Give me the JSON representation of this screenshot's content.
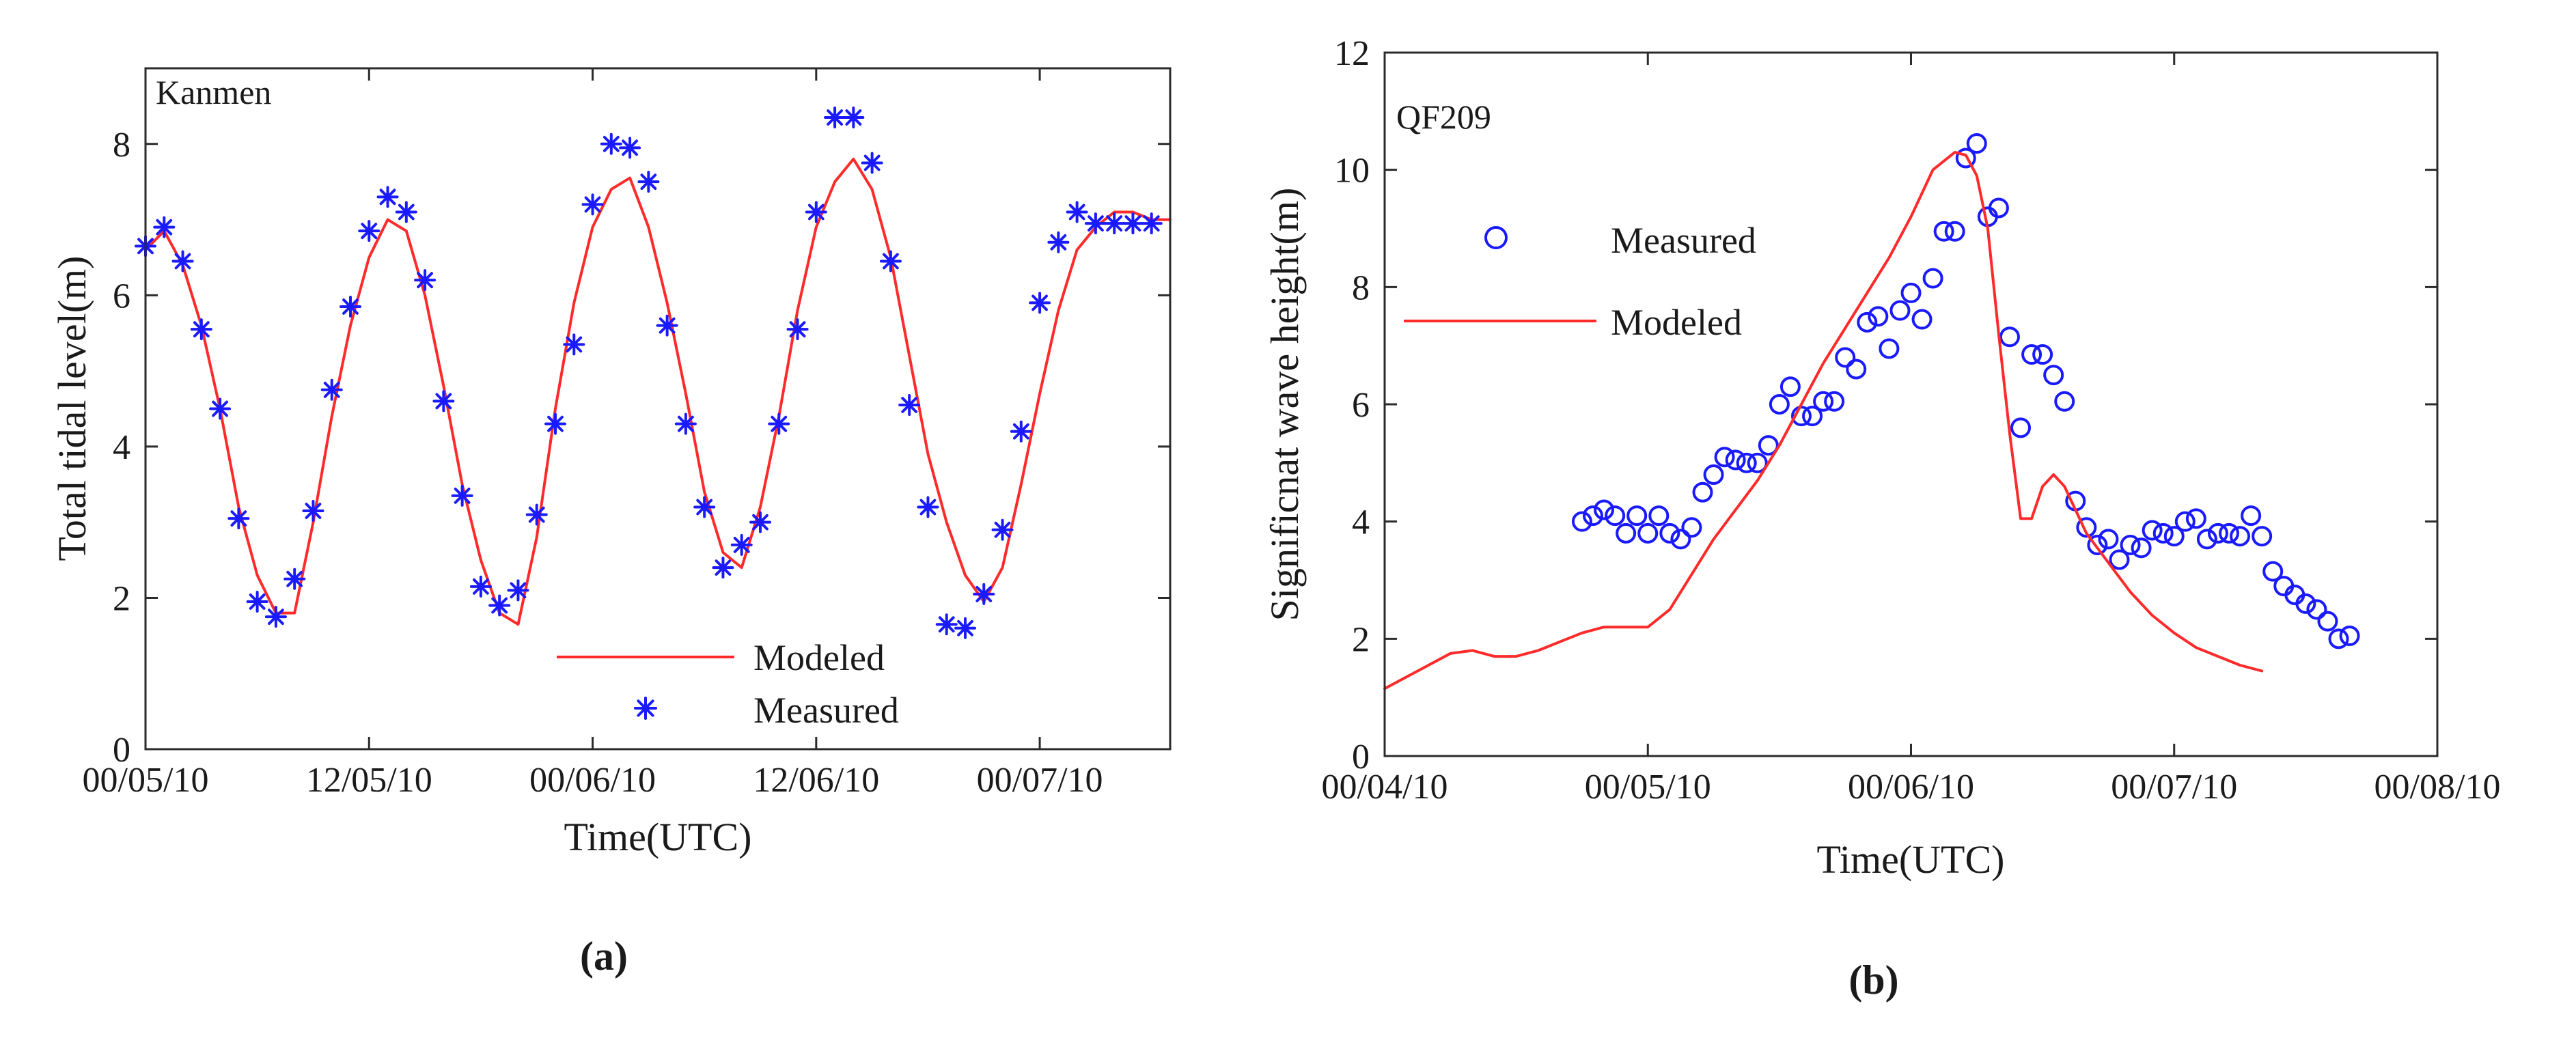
{
  "colors": {
    "modeled": "#ff2a2a",
    "measured": "#1a1aff",
    "axis": "#2b2b2b"
  },
  "chart_data": [
    {
      "type": "line",
      "panel_label": "(a)",
      "title": "Kanmen",
      "xlabel": "Time(UTC)",
      "ylabel": "Total tidal level(m)",
      "x_unit": "hours since 00/05/10",
      "xlim": [
        0,
        55
      ],
      "ylim": [
        0,
        9
      ],
      "xticks": [
        {
          "value": 0,
          "label": "00/05/10"
        },
        {
          "value": 12,
          "label": "12/05/10"
        },
        {
          "value": 24,
          "label": "00/06/10"
        },
        {
          "value": 36,
          "label": "12/06/10"
        },
        {
          "value": 48,
          "label": "00/07/10"
        }
      ],
      "yticks": [
        0,
        2,
        4,
        6,
        8
      ],
      "legend": {
        "position": "bottom-center",
        "entries": [
          "Modeled",
          "Measured"
        ]
      },
      "series": [
        {
          "name": "Modeled",
          "style": "line",
          "color": "#ff2a2a",
          "x": [
            0,
            1,
            2,
            3,
            4,
            5,
            6,
            7,
            8,
            9,
            10,
            11,
            12,
            13,
            14,
            15,
            16,
            17,
            18,
            19,
            20,
            21,
            22,
            23,
            24,
            25,
            26,
            27,
            28,
            29,
            30,
            31,
            32,
            33,
            34,
            35,
            36,
            37,
            38,
            39,
            40,
            41,
            42,
            43,
            44,
            45,
            46,
            47,
            48,
            49,
            50,
            51,
            52,
            53,
            54,
            55
          ],
          "y": [
            6.6,
            6.85,
            6.4,
            5.6,
            4.5,
            3.2,
            2.3,
            1.8,
            1.8,
            3.0,
            4.4,
            5.6,
            6.5,
            7.0,
            6.85,
            6.0,
            4.8,
            3.5,
            2.5,
            1.8,
            1.65,
            2.8,
            4.5,
            5.9,
            6.9,
            7.4,
            7.55,
            6.9,
            5.9,
            4.7,
            3.4,
            2.6,
            2.4,
            3.2,
            4.4,
            5.8,
            6.9,
            7.5,
            7.8,
            7.4,
            6.5,
            5.2,
            3.9,
            3.0,
            2.3,
            1.95,
            2.4,
            3.5,
            4.7,
            5.8,
            6.6,
            6.9,
            7.1,
            7.1,
            7.0,
            7.0
          ]
        },
        {
          "name": "Measured",
          "style": "marker-asterisk",
          "color": "#1a1aff",
          "x": [
            0,
            1,
            2,
            3,
            4,
            5,
            6,
            7,
            8,
            9,
            10,
            11,
            12,
            13,
            14,
            15,
            16,
            17,
            18,
            19,
            20,
            21,
            22,
            23,
            24,
            25,
            26,
            27,
            28,
            29,
            30,
            31,
            32,
            33,
            34,
            35,
            36,
            37,
            38,
            39,
            40,
            41,
            42,
            43,
            44,
            45,
            46,
            47,
            48,
            49,
            50,
            51,
            52,
            53,
            54
          ],
          "y": [
            6.65,
            6.9,
            6.45,
            5.55,
            4.5,
            3.05,
            1.95,
            1.75,
            2.25,
            3.15,
            4.75,
            5.85,
            6.85,
            7.3,
            7.1,
            6.2,
            4.6,
            3.35,
            2.15,
            1.9,
            2.1,
            3.1,
            4.3,
            5.35,
            7.2,
            8.0,
            7.95,
            7.5,
            5.6,
            4.3,
            3.2,
            2.4,
            2.7,
            3.0,
            4.3,
            5.55,
            7.1,
            8.35,
            8.35,
            7.75,
            6.45,
            4.55,
            3.2,
            1.65,
            1.6,
            2.05,
            2.9,
            4.2,
            5.9,
            6.7,
            7.1,
            6.95,
            6.95,
            6.95,
            6.95
          ]
        }
      ]
    },
    {
      "type": "scatter",
      "panel_label": "(b)",
      "title": "QF209",
      "xlabel": "Time(UTC)",
      "ylabel": "Significnat wave height(m)",
      "x_unit": "hours since 00/04/10",
      "xlim": [
        0,
        96
      ],
      "ylim": [
        0,
        12
      ],
      "xticks": [
        {
          "value": 0,
          "label": "00/04/10"
        },
        {
          "value": 24,
          "label": "00/05/10"
        },
        {
          "value": 48,
          "label": "00/06/10"
        },
        {
          "value": 72,
          "label": "00/07/10"
        },
        {
          "value": 96,
          "label": "00/08/10"
        }
      ],
      "yticks": [
        0,
        2,
        4,
        6,
        8,
        10,
        12
      ],
      "legend": {
        "position": "top-left",
        "entries": [
          "Measured",
          "Modeled"
        ]
      },
      "series": [
        {
          "name": "Measured",
          "style": "marker-circle",
          "color": "#1a1aff",
          "x": [
            18,
            19,
            20,
            21,
            22,
            23,
            24,
            25,
            26,
            27,
            28,
            29,
            30,
            31,
            32,
            33,
            34,
            35,
            36,
            37,
            38,
            39,
            40,
            41,
            42,
            43,
            44,
            45,
            46,
            47,
            48,
            49,
            50,
            51,
            52,
            53,
            54,
            55,
            56,
            57,
            58,
            59,
            60,
            61,
            62,
            63,
            64,
            65,
            66,
            67,
            68,
            69,
            70,
            71,
            72,
            73,
            74,
            75,
            76,
            77,
            78,
            79,
            80,
            81,
            82,
            83,
            84,
            85,
            86,
            87,
            88
          ],
          "y": [
            4.0,
            4.1,
            4.2,
            4.1,
            3.8,
            4.1,
            3.8,
            4.1,
            3.8,
            3.7,
            3.9,
            4.5,
            4.8,
            5.1,
            5.05,
            5.0,
            5.0,
            5.3,
            6.0,
            6.3,
            5.8,
            5.8,
            6.05,
            6.05,
            6.8,
            6.6,
            7.4,
            7.5,
            6.95,
            7.6,
            7.9,
            7.45,
            8.15,
            8.95,
            8.95,
            10.2,
            10.45,
            9.2,
            9.35,
            7.15,
            5.6,
            6.85,
            6.85,
            6.5,
            6.05,
            4.35,
            3.9,
            3.6,
            3.7,
            3.35,
            3.6,
            3.55,
            3.85,
            3.8,
            3.75,
            4.0,
            4.05,
            3.7,
            3.8,
            3.8,
            3.75,
            4.1,
            3.75,
            3.15,
            2.9,
            2.75,
            2.6,
            2.5,
            2.3,
            2.0,
            2.05
          ]
        },
        {
          "name": "Modeled",
          "style": "line",
          "color": "#ff2a2a",
          "x": [
            0,
            2,
            4,
            6,
            8,
            10,
            12,
            14,
            16,
            18,
            20,
            22,
            24,
            26,
            28,
            30,
            32,
            34,
            36,
            38,
            40,
            42,
            44,
            46,
            48,
            50,
            52,
            53,
            54,
            55,
            56,
            57,
            58,
            59,
            60,
            61,
            62,
            63,
            64,
            66,
            68,
            70,
            72,
            74,
            76,
            78,
            80
          ],
          "y": [
            1.15,
            1.35,
            1.55,
            1.75,
            1.8,
            1.7,
            1.7,
            1.8,
            1.95,
            2.1,
            2.2,
            2.2,
            2.2,
            2.5,
            3.1,
            3.7,
            4.2,
            4.7,
            5.3,
            6.0,
            6.7,
            7.3,
            7.9,
            8.5,
            9.2,
            10.0,
            10.3,
            10.25,
            9.9,
            9.0,
            7.2,
            5.5,
            4.05,
            4.05,
            4.6,
            4.8,
            4.6,
            4.2,
            3.8,
            3.3,
            2.8,
            2.4,
            2.1,
            1.85,
            1.7,
            1.55,
            1.45
          ]
        }
      ]
    }
  ]
}
